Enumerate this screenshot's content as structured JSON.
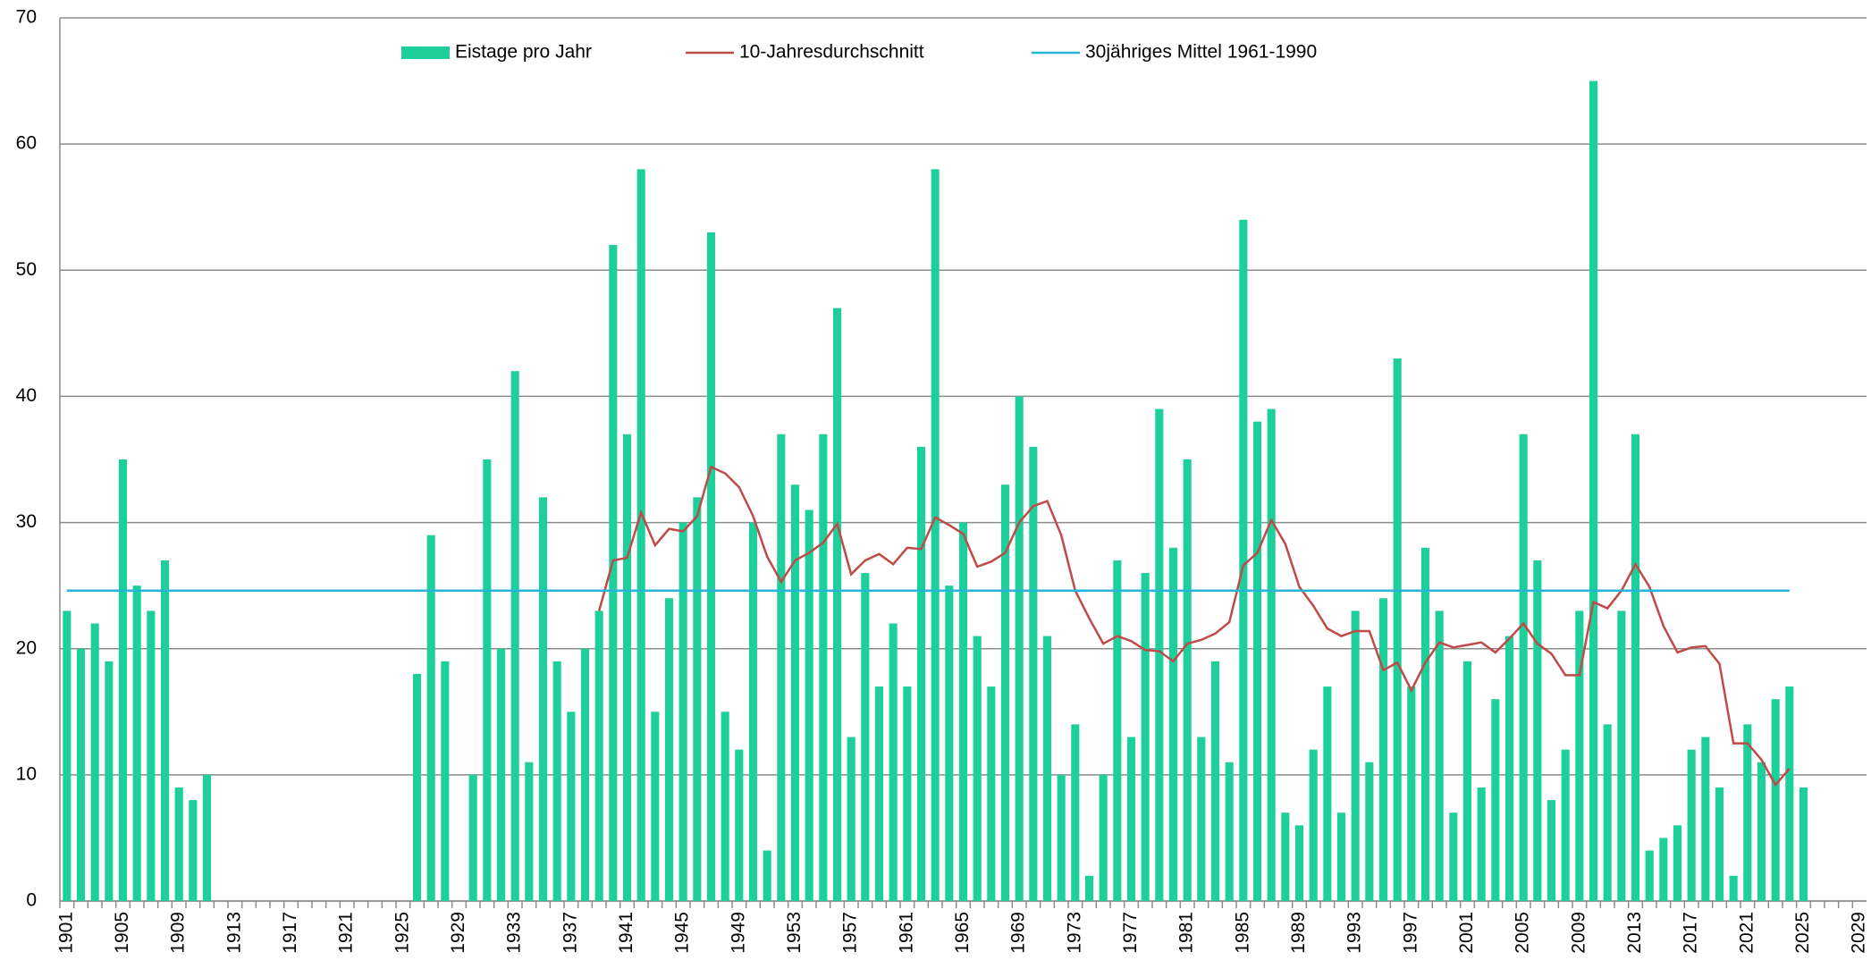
{
  "chart_data": {
    "type": "bar",
    "categories": [
      "1901",
      null,
      null,
      null,
      "1905",
      null,
      null,
      null,
      "1909",
      null,
      null,
      null,
      "1913",
      null,
      null,
      null,
      "1917",
      null,
      null,
      null,
      "1921",
      null,
      null,
      null,
      "1925",
      null,
      null,
      null,
      "1929",
      null,
      null,
      null,
      "1933",
      null,
      null,
      null,
      "1937",
      null,
      null,
      null,
      "1941",
      null,
      null,
      null,
      "1945",
      null,
      null,
      null,
      "1949",
      null,
      null,
      null,
      "1953",
      null,
      null,
      null,
      "1957",
      null,
      null,
      null,
      "1961",
      null,
      null,
      null,
      "1965",
      null,
      null,
      null,
      "1969",
      null,
      null,
      null,
      "1973",
      null,
      null,
      null,
      "1977",
      null,
      null,
      null,
      "1981",
      null,
      null,
      null,
      "1985",
      null,
      null,
      null,
      "1989",
      null,
      null,
      null,
      "1993",
      null,
      null,
      null,
      "1997",
      null,
      null,
      null,
      "2001",
      null,
      null,
      null,
      "2005",
      null,
      null,
      null,
      "2009",
      null,
      null,
      null,
      "2013",
      null,
      null,
      null,
      "2017",
      null,
      null,
      null,
      "2021",
      null,
      null,
      null,
      "2025",
      null,
      null,
      null,
      "2029"
    ],
    "series": [
      {
        "name": "Eistage pro Jahr",
        "type": "bar",
        "color": "#1ccf9b",
        "values": [
          23,
          20,
          22,
          19,
          35,
          25,
          23,
          27,
          9,
          8,
          10,
          null,
          null,
          null,
          null,
          null,
          null,
          null,
          null,
          null,
          null,
          null,
          null,
          null,
          null,
          18,
          29,
          19,
          null,
          10,
          35,
          20,
          42,
          11,
          32,
          19,
          15,
          20,
          23,
          52,
          37,
          58,
          15,
          24,
          30,
          32,
          53,
          15,
          12,
          30,
          4,
          37,
          33,
          31,
          37,
          47,
          13,
          26,
          17,
          22,
          17,
          36,
          58,
          25,
          30,
          21,
          17,
          33,
          40,
          36,
          21,
          10,
          14,
          2,
          10,
          27,
          13,
          26,
          39,
          28,
          35,
          13,
          19,
          11,
          54,
          38,
          39,
          7,
          6,
          12,
          17,
          7,
          23,
          11,
          24,
          43,
          17,
          28,
          23,
          7,
          19,
          9,
          16,
          21,
          37,
          27,
          8,
          12,
          23,
          65,
          14,
          23,
          37,
          4,
          5,
          6,
          12,
          13,
          9,
          2,
          14,
          11,
          16,
          17,
          9,
          null,
          null,
          null,
          null
        ]
      },
      {
        "name": "10-Jahresdurchschnitt",
        "type": "line",
        "color": "#be4b48",
        "values": [
          null,
          null,
          null,
          null,
          null,
          null,
          null,
          null,
          null,
          null,
          null,
          null,
          null,
          null,
          null,
          null,
          null,
          null,
          null,
          null,
          null,
          null,
          null,
          null,
          null,
          null,
          null,
          null,
          null,
          null,
          null,
          null,
          null,
          null,
          null,
          null,
          null,
          null,
          23,
          27,
          27.2,
          30.8,
          28.2,
          29.5,
          29.3,
          30.5,
          34.4,
          33.9,
          32.8,
          30.5,
          27.3,
          25.3,
          27,
          27.6,
          28.4,
          29.9,
          25.9,
          27,
          27.5,
          26.7,
          28,
          27.9,
          30.4,
          29.8,
          29.1,
          26.5,
          26.9,
          27.6,
          30,
          31.3,
          31.7,
          29,
          24.6,
          22.4,
          20.4,
          21,
          20.6,
          19.9,
          19.8,
          19,
          20.4,
          20.7,
          21.2,
          22.1,
          26.6,
          27.6,
          30.2,
          28.3,
          24.9,
          23.4,
          21.6,
          21,
          21.4,
          21.4,
          18.3,
          18.9,
          16.7,
          18.9,
          20.5,
          20.1,
          20.3,
          20.5,
          19.7,
          20.8,
          22,
          20.4,
          19.6,
          17.9,
          17.9,
          23.7,
          23.2,
          24.6,
          26.7,
          24.9,
          21.8,
          19.7,
          20.1,
          20.2,
          18.8,
          12.5,
          12.5,
          11.2,
          9.2,
          10.5,
          null,
          null,
          null,
          null,
          null
        ]
      },
      {
        "name": "30jähriges Mittel 1961-1990",
        "type": "line",
        "color": "#26b4d8",
        "values": [
          24.6,
          24.6,
          24.6,
          24.6,
          24.6,
          24.6,
          24.6,
          24.6,
          24.6,
          24.6,
          24.6,
          24.6,
          24.6,
          24.6,
          24.6,
          24.6,
          24.6,
          24.6,
          24.6,
          24.6,
          24.6,
          24.6,
          24.6,
          24.6,
          24.6,
          24.6,
          24.6,
          24.6,
          24.6,
          24.6,
          24.6,
          24.6,
          24.6,
          24.6,
          24.6,
          24.6,
          24.6,
          24.6,
          24.6,
          24.6,
          24.6,
          24.6,
          24.6,
          24.6,
          24.6,
          24.6,
          24.6,
          24.6,
          24.6,
          24.6,
          24.6,
          24.6,
          24.6,
          24.6,
          24.6,
          24.6,
          24.6,
          24.6,
          24.6,
          24.6,
          24.6,
          24.6,
          24.6,
          24.6,
          24.6,
          24.6,
          24.6,
          24.6,
          24.6,
          24.6,
          24.6,
          24.6,
          24.6,
          24.6,
          24.6,
          24.6,
          24.6,
          24.6,
          24.6,
          24.6,
          24.6,
          24.6,
          24.6,
          24.6,
          24.6,
          24.6,
          24.6,
          24.6,
          24.6,
          24.6,
          24.6,
          24.6,
          24.6,
          24.6,
          24.6,
          24.6,
          24.6,
          24.6,
          24.6,
          24.6,
          24.6,
          24.6,
          24.6,
          24.6,
          24.6,
          24.6,
          24.6,
          24.6,
          24.6,
          24.6,
          24.6,
          24.6,
          24.6,
          24.6,
          24.6,
          24.6,
          24.6,
          24.6,
          24.6,
          24.6,
          24.6,
          24.6,
          24.6,
          24.6,
          null,
          null,
          null,
          null,
          null
        ]
      }
    ],
    "ylim": [
      0,
      70
    ],
    "yticks": [
      0,
      10,
      20,
      30,
      40,
      50,
      60,
      70
    ],
    "grid": true,
    "legend": "top"
  }
}
